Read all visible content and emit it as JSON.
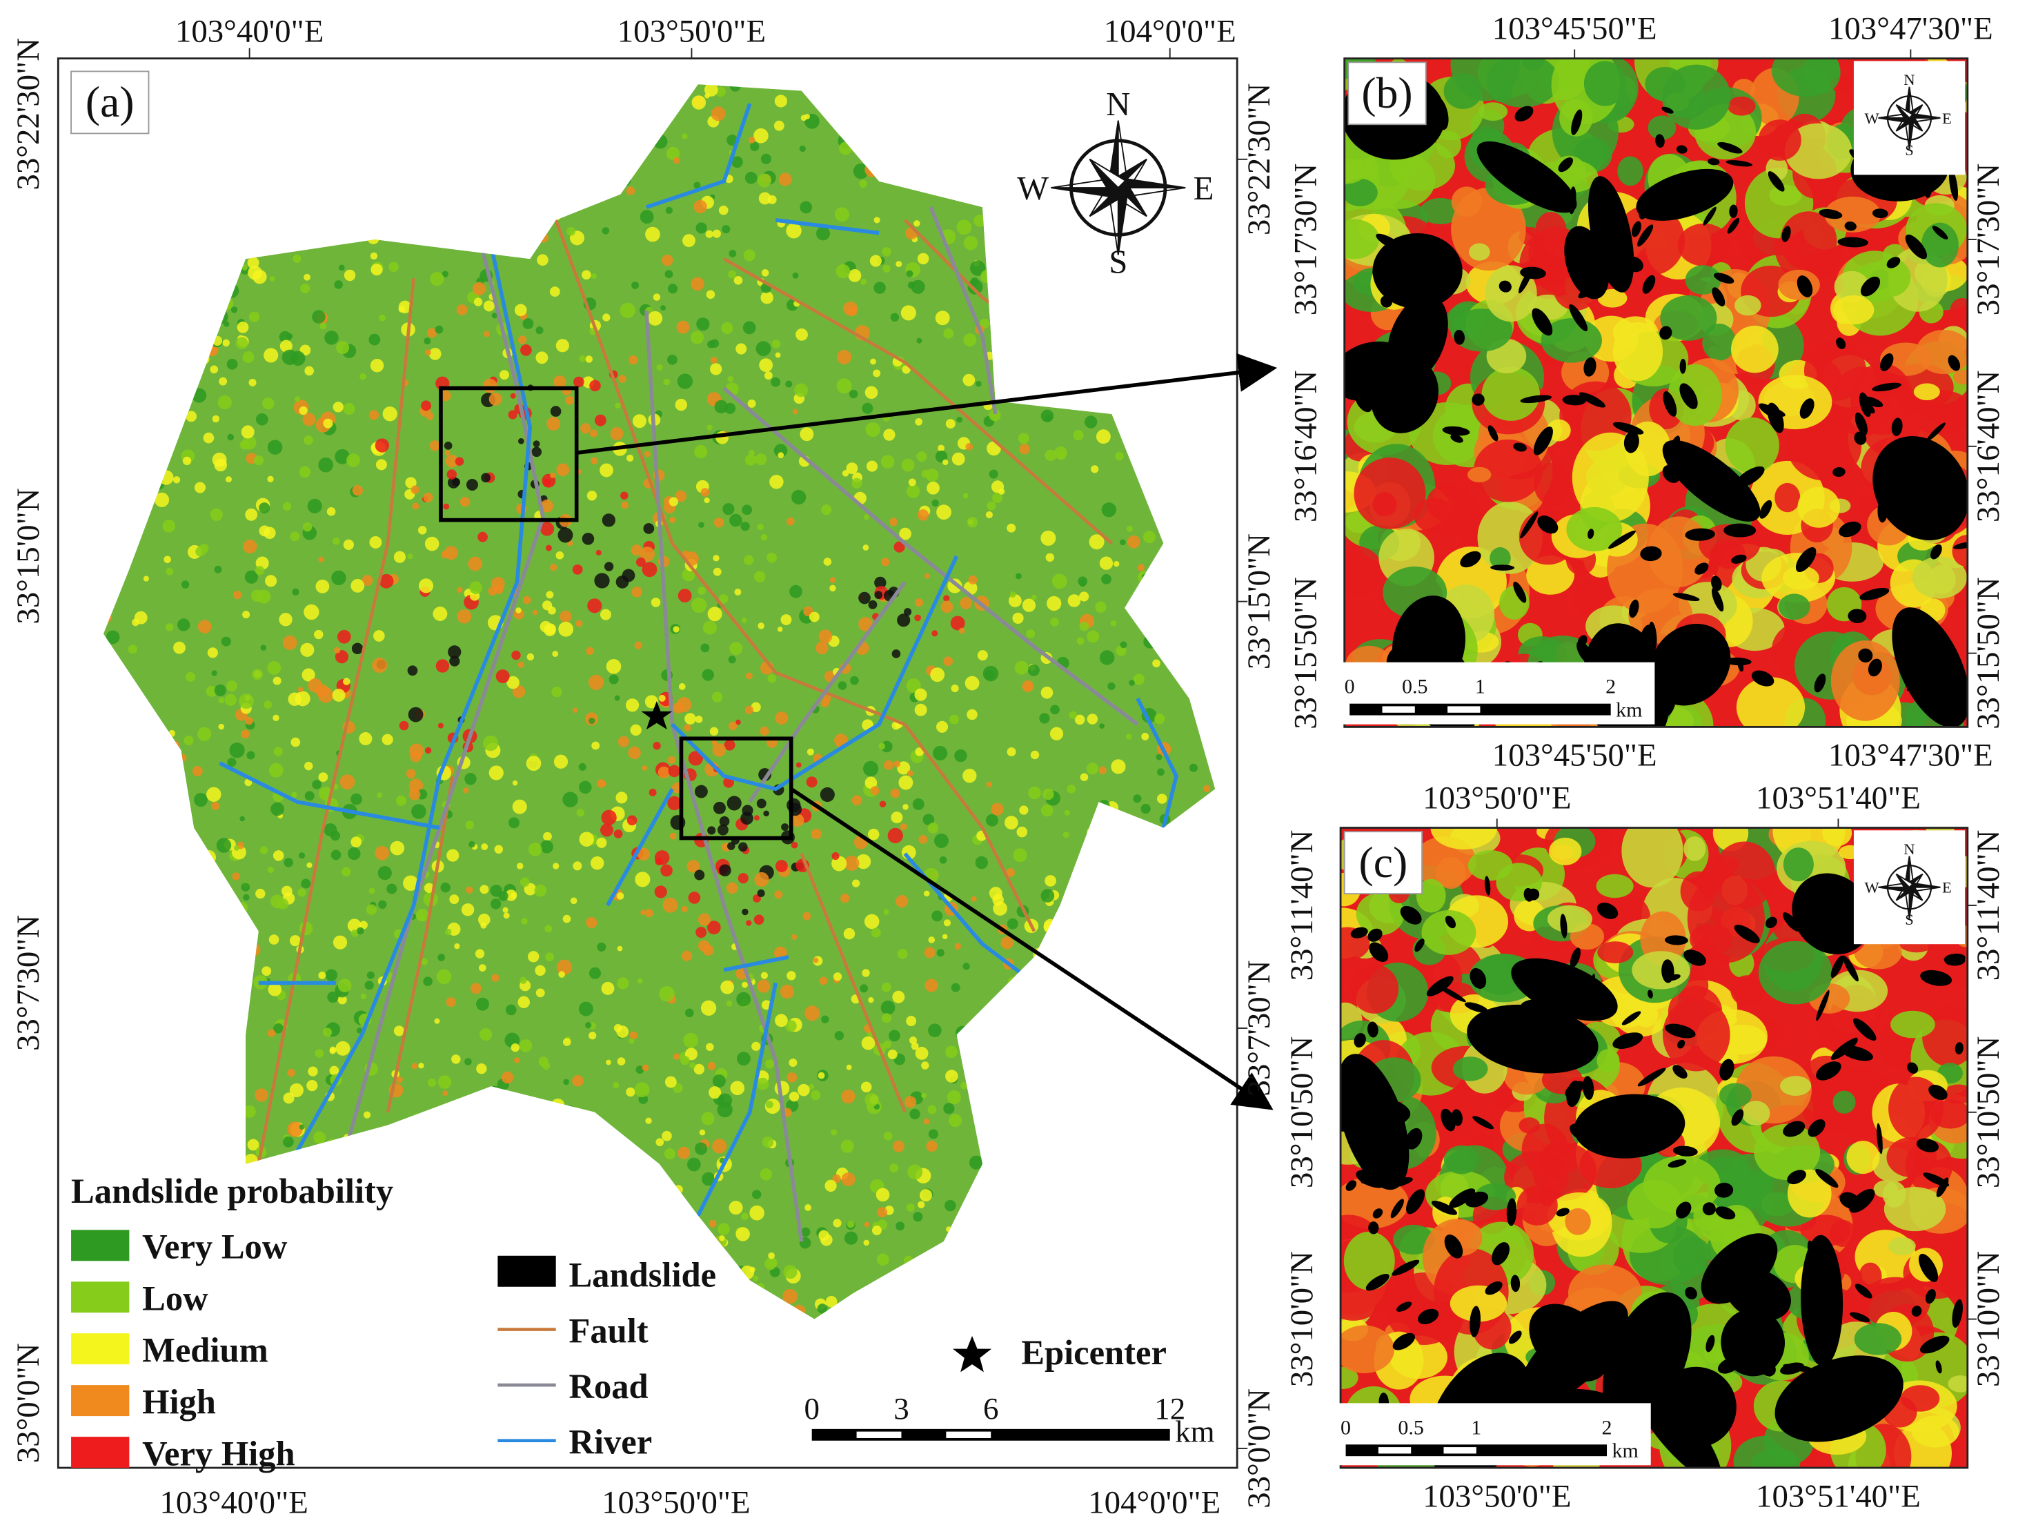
{
  "compass": [
    "N",
    "W",
    "E",
    "S"
  ],
  "panel_a": {
    "label": "(a)",
    "x_labels": [
      "103°40'0\"E",
      "103°50'0\"E",
      "104°0'0\"E"
    ],
    "y_labels": [
      "33°22'30\"N",
      "33°15'0\"N",
      "33°7'30\"N",
      "33°0'0\"N"
    ],
    "legend": {
      "title": "Landslide probability",
      "classes": [
        {
          "label": "Very Low",
          "color": "#2e9a22"
        },
        {
          "label": "Low",
          "color": "#86cc1a"
        },
        {
          "label": "Medium",
          "color": "#f5f51e"
        },
        {
          "label": "High",
          "color": "#f08a1e"
        },
        {
          "label": "Very High",
          "color": "#ee1c1c"
        }
      ]
    },
    "symbols": [
      {
        "label": "Landslide",
        "color": "#000000"
      },
      {
        "label": "Fault",
        "color": "#c87a3c"
      },
      {
        "label": "Road",
        "color": "#8a8a96"
      },
      {
        "label": "River",
        "color": "#2a8ae0"
      }
    ],
    "epicenter": "Epicenter",
    "scale": {
      "ticks": [
        0,
        3,
        6,
        12
      ],
      "unit": "km"
    }
  },
  "panel_b": {
    "label": "(b)",
    "x_labels": [
      "103°45'50\"E",
      "103°47'30\"E"
    ],
    "y_labels": [
      "33°17'30\"N",
      "33°16'40\"N",
      "33°15'50\"N"
    ],
    "scale": {
      "ticks": [
        0,
        0.5,
        1,
        2
      ],
      "unit": "km"
    }
  },
  "panel_c": {
    "label": "(c)",
    "x_labels": [
      "103°50'0\"E",
      "103°51'40\"E"
    ],
    "y_labels": [
      "33°11'40\"N",
      "33°10'50\"N",
      "33°10'0\"N"
    ],
    "scale": {
      "ticks": [
        0,
        0.5,
        1,
        2
      ],
      "unit": "km"
    }
  }
}
